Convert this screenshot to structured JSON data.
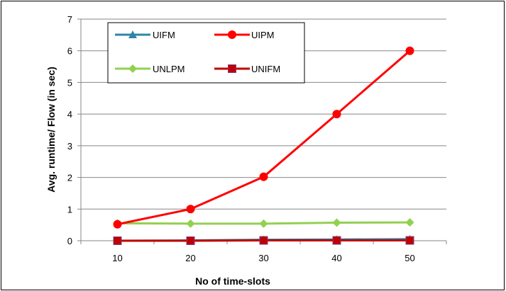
{
  "chart_data": {
    "type": "line",
    "title": "",
    "xlabel": "No of  time-slots",
    "ylabel": "Avg.  runtime/ Flow (in sec)",
    "x": [
      10,
      20,
      30,
      40,
      50
    ],
    "xlim": [
      5,
      55
    ],
    "ylim": [
      0,
      7
    ],
    "yticks": [
      0,
      1,
      2,
      3,
      4,
      5,
      6,
      7
    ],
    "grid": true,
    "legend_position": "top-left",
    "series": [
      {
        "name": "UIFM",
        "color": "#2e86a8",
        "marker": "triangle",
        "values": [
          0.0,
          0.01,
          0.03,
          0.04,
          0.05
        ]
      },
      {
        "name": "UIPM",
        "color": "#ff0000",
        "marker": "circle",
        "values": [
          0.52,
          1.0,
          2.02,
          4.0,
          6.0
        ]
      },
      {
        "name": "UNLPM",
        "color": "#92d050",
        "marker": "diamond",
        "values": [
          0.55,
          0.54,
          0.54,
          0.57,
          0.58
        ]
      },
      {
        "name": "UNIFM",
        "color": "#c00000",
        "marker": "square",
        "values": [
          0.0,
          0.0,
          0.01,
          0.01,
          0.01
        ]
      }
    ]
  }
}
